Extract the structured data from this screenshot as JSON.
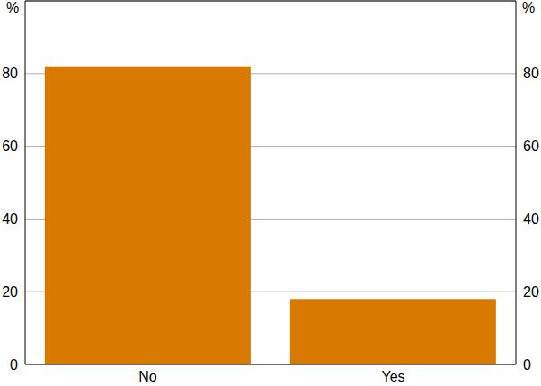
{
  "chart_data": {
    "type": "bar",
    "ylabel": "%",
    "categories": [
      "No",
      "Yes"
    ],
    "values": [
      82,
      18
    ],
    "color": "#d97a00",
    "ylim": [
      0,
      100
    ],
    "yticks": [
      0,
      20,
      40,
      60,
      80
    ],
    "grid": true
  }
}
